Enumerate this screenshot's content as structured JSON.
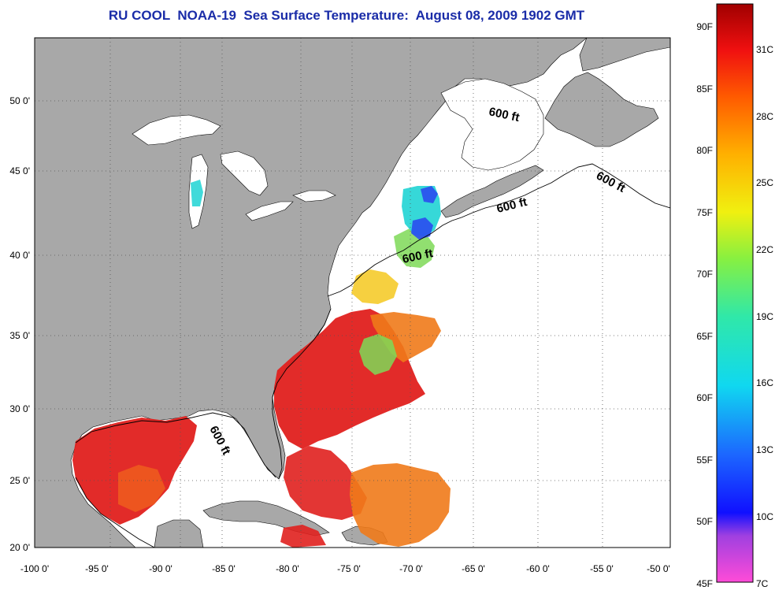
{
  "title": "RU COOL  NOAA-19  Sea Surface Temperature:  August 08, 2009 1902 GMT",
  "lon_ticks": [
    "-100 0'",
    "-95 0'",
    "-90 0'",
    "-85 0'",
    "-80 0'",
    "-75 0'",
    "-70 0'",
    "-65 0'",
    "-60 0'",
    "-55 0'",
    "-50 0'"
  ],
  "lat_ticks": [
    "50 0'",
    "45 0'",
    "40 0'",
    "35 0'",
    "30 0'",
    "25 0'",
    "20 0'"
  ],
  "isobath_labels": [
    "600 ft",
    "600 ft",
    "600 ft",
    "600 ft",
    "600 ft"
  ],
  "colorbar": {
    "fahrenheit": [
      "90F",
      "85F",
      "80F",
      "75F",
      "70F",
      "65F",
      "60F",
      "55F",
      "50F",
      "45F"
    ],
    "celsius": [
      "31C",
      "28C",
      "25C",
      "22C",
      "19C",
      "16C",
      "13C",
      "10C",
      "7C"
    ]
  },
  "colors": {
    "land": "#a8a8a8",
    "no_data": "#ffffff",
    "title": "#1a2ca8",
    "sst_warm": "#e0201e",
    "sst_orange": "#f07a1a",
    "sst_yellow": "#f5c81e",
    "sst_green": "#7ed957",
    "sst_cyan": "#2bd6d6",
    "sst_blue": "#2a4cf0"
  }
}
